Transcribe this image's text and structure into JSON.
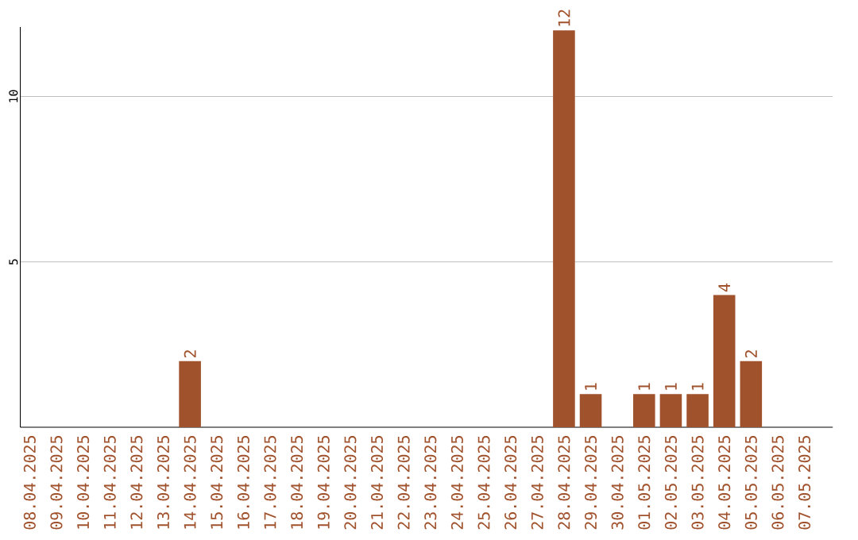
{
  "chart_data": {
    "type": "bar",
    "categories": [
      "08.04.2025",
      "09.04.2025",
      "10.04.2025",
      "11.04.2025",
      "12.04.2025",
      "13.04.2025",
      "14.04.2025",
      "15.04.2025",
      "16.04.2025",
      "17.04.2025",
      "18.04.2025",
      "19.04.2025",
      "20.04.2025",
      "21.04.2025",
      "22.04.2025",
      "23.04.2025",
      "24.04.2025",
      "25.04.2025",
      "26.04.2025",
      "27.04.2025",
      "28.04.2025",
      "29.04.2025",
      "30.04.2025",
      "01.05.2025",
      "02.05.2025",
      "03.05.2025",
      "04.05.2025",
      "05.05.2025",
      "06.05.2025",
      "07.05.2025"
    ],
    "values": [
      0,
      0,
      0,
      0,
      0,
      0,
      2,
      0,
      0,
      0,
      0,
      0,
      0,
      0,
      0,
      0,
      0,
      0,
      0,
      0,
      12,
      1,
      0,
      1,
      1,
      1,
      4,
      2,
      0,
      0
    ],
    "value_labels": [
      null,
      null,
      null,
      null,
      null,
      null,
      "2",
      null,
      null,
      null,
      null,
      null,
      null,
      null,
      null,
      null,
      null,
      null,
      null,
      null,
      "12",
      "1",
      null,
      "1",
      "1",
      "1",
      "4",
      "2",
      null,
      null
    ],
    "color": "#a0522d",
    "ylim": [
      0,
      12.1
    ],
    "yticks": [
      5,
      10
    ],
    "grid": "y"
  }
}
